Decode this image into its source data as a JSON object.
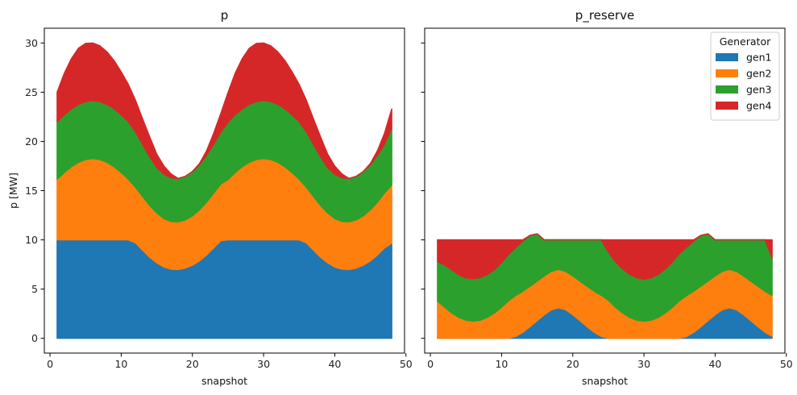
{
  "chart_data": [
    {
      "type": "area",
      "title": "p",
      "xlabel": "snapshot",
      "ylabel": "p [MW]",
      "xlim": [
        -0.8,
        49.8
      ],
      "ylim": [
        -1.5,
        31.5
      ],
      "xticks": [
        0,
        10,
        20,
        30,
        40,
        50
      ],
      "yticks": [
        0,
        5,
        10,
        15,
        20,
        25,
        30
      ],
      "x": [
        1,
        2,
        3,
        4,
        5,
        6,
        7,
        8,
        9,
        10,
        11,
        12,
        13,
        14,
        15,
        16,
        17,
        18,
        19,
        20,
        21,
        22,
        23,
        24,
        25,
        26,
        27,
        28,
        29,
        30,
        31,
        32,
        33,
        34,
        35,
        36,
        37,
        38,
        39,
        40,
        41,
        42,
        43,
        44,
        45,
        46,
        47,
        48
      ],
      "series": [
        {
          "name": "gen1",
          "color": "#1f77b4",
          "values": [
            10.0,
            10.0,
            10.0,
            10.0,
            10.0,
            10.0,
            10.0,
            10.0,
            10.0,
            10.0,
            10.0,
            9.7,
            8.96,
            8.24,
            7.67,
            7.24,
            7.03,
            7.0,
            7.13,
            7.43,
            7.87,
            8.47,
            9.2,
            9.93,
            10.0,
            10.0,
            10.0,
            10.0,
            10.0,
            10.0,
            10.0,
            10.0,
            10.0,
            10.0,
            10.0,
            9.7,
            8.96,
            8.24,
            7.67,
            7.24,
            7.03,
            7.0,
            7.13,
            7.43,
            7.87,
            8.47,
            9.2,
            9.66
          ]
        },
        {
          "name": "gen2",
          "color": "#ff7f0e",
          "values": [
            6.17,
            6.84,
            7.43,
            7.88,
            8.16,
            8.26,
            8.16,
            7.88,
            7.43,
            6.84,
            6.17,
            5.65,
            5.45,
            5.26,
            5.07,
            4.92,
            4.84,
            4.84,
            4.89,
            5.01,
            5.18,
            5.37,
            5.56,
            5.75,
            6.13,
            6.84,
            7.43,
            7.88,
            8.16,
            8.26,
            8.16,
            7.88,
            7.43,
            6.84,
            6.17,
            5.65,
            5.45,
            5.26,
            5.07,
            4.92,
            4.84,
            4.84,
            4.89,
            5.01,
            5.18,
            5.37,
            5.56,
            5.93
          ]
        },
        {
          "name": "gen3",
          "color": "#2ca02c",
          "values": [
            5.83,
            5.87,
            5.88,
            5.89,
            5.89,
            5.9,
            5.89,
            5.89,
            5.88,
            5.87,
            5.83,
            5.64,
            5.29,
            4.94,
            4.6,
            4.5,
            4.43,
            4.4,
            4.43,
            4.5,
            4.6,
            4.77,
            4.98,
            5.28,
            5.83,
            5.87,
            5.88,
            5.89,
            5.89,
            5.9,
            5.89,
            5.89,
            5.88,
            5.87,
            5.83,
            5.64,
            5.29,
            4.94,
            4.6,
            4.5,
            4.43,
            4.4,
            4.43,
            4.5,
            4.6,
            4.77,
            4.98,
            5.8
          ]
        },
        {
          "name": "gen4",
          "color": "#d62728",
          "values": [
            3.0,
            4.2,
            5.1,
            5.7,
            5.9,
            5.84,
            5.66,
            5.33,
            4.9,
            4.36,
            3.79,
            3.2,
            2.6,
            2.02,
            1.36,
            0.84,
            0.4,
            0.0,
            0.0,
            0.0,
            0.1,
            0.45,
            1.11,
            1.9,
            3.0,
            4.2,
            5.1,
            5.7,
            5.9,
            5.84,
            5.66,
            5.33,
            4.9,
            4.36,
            3.79,
            3.2,
            2.6,
            2.02,
            1.36,
            0.84,
            0.4,
            0.0,
            0.0,
            0.0,
            0.1,
            0.45,
            1.11,
            1.9
          ]
        }
      ]
    },
    {
      "type": "area",
      "title": "p_reserve",
      "xlabel": "snapshot",
      "ylabel": "",
      "xlim": [
        -0.8,
        49.8
      ],
      "ylim": [
        -1.5,
        31.5
      ],
      "xticks": [
        0,
        10,
        20,
        30,
        40,
        50
      ],
      "yticks": [
        0,
        5,
        10,
        15,
        20,
        25,
        30
      ],
      "legend": {
        "title": "Generator",
        "placement": "top-right",
        "entries": [
          "gen1",
          "gen2",
          "gen3",
          "gen4"
        ]
      },
      "x": [
        1,
        2,
        3,
        4,
        5,
        6,
        7,
        8,
        9,
        10,
        11,
        12,
        13,
        14,
        15,
        16,
        17,
        18,
        19,
        20,
        21,
        22,
        23,
        24,
        25,
        26,
        27,
        28,
        29,
        30,
        31,
        32,
        33,
        34,
        35,
        36,
        37,
        38,
        39,
        40,
        41,
        42,
        43,
        44,
        45,
        46,
        47,
        48
      ],
      "series": [
        {
          "name": "gen1",
          "color": "#1f77b4",
          "values": [
            0.0,
            0.0,
            0.0,
            0.0,
            0.0,
            0.0,
            0.0,
            0.0,
            0.0,
            0.0,
            0.0,
            0.2,
            0.62,
            1.19,
            1.8,
            2.4,
            2.9,
            3.1,
            2.9,
            2.4,
            1.8,
            1.19,
            0.62,
            0.2,
            0.0,
            0.0,
            0.0,
            0.0,
            0.0,
            0.0,
            0.0,
            0.0,
            0.0,
            0.0,
            0.0,
            0.2,
            0.62,
            1.19,
            1.8,
            2.4,
            2.9,
            3.1,
            2.9,
            2.4,
            1.8,
            1.19,
            0.62,
            0.2
          ]
        },
        {
          "name": "gen2",
          "color": "#ff7f0e",
          "values": [
            3.8,
            3.16,
            2.57,
            2.12,
            1.84,
            1.74,
            1.84,
            2.12,
            2.57,
            3.16,
            3.83,
            4.15,
            4.17,
            4.11,
            4.01,
            3.94,
            3.9,
            3.9,
            3.9,
            3.94,
            4.01,
            4.11,
            4.17,
            4.17,
            3.87,
            3.16,
            2.57,
            2.12,
            1.84,
            1.74,
            1.84,
            2.12,
            2.57,
            3.16,
            3.83,
            4.15,
            4.17,
            4.11,
            4.01,
            3.94,
            3.9,
            3.9,
            3.9,
            3.94,
            4.01,
            4.11,
            4.17,
            4.17
          ]
        },
        {
          "name": "gen3",
          "color": "#2ca02c",
          "values": [
            4.0,
            4.3,
            4.38,
            4.33,
            4.3,
            4.32,
            4.33,
            4.35,
            4.4,
            4.55,
            4.7,
            4.9,
            5.1,
            5.16,
            4.8,
            3.66,
            3.2,
            3.0,
            3.2,
            3.66,
            4.19,
            4.7,
            5.21,
            5.63,
            4.9,
            4.6,
            4.48,
            4.38,
            4.3,
            4.26,
            4.3,
            4.38,
            4.48,
            4.6,
            4.8,
            4.9,
            5.1,
            5.16,
            4.8,
            3.66,
            3.2,
            3.0,
            3.2,
            3.66,
            4.19,
            4.7,
            5.21,
            3.8
          ]
        },
        {
          "name": "gen4",
          "color": "#d62728",
          "values": [
            2.2,
            2.54,
            3.05,
            3.55,
            3.86,
            3.94,
            3.83,
            3.53,
            3.03,
            2.29,
            1.47,
            0.75,
            0.11,
            0.0,
            0.0,
            0.0,
            0.0,
            0.0,
            0.0,
            0.0,
            0.0,
            0.0,
            0.0,
            0.0,
            1.23,
            2.24,
            2.95,
            3.5,
            3.86,
            4.0,
            3.86,
            3.5,
            2.95,
            2.24,
            1.37,
            0.75,
            0.11,
            0.0,
            0.0,
            0.0,
            0.0,
            0.0,
            0.0,
            0.0,
            0.0,
            0.0,
            0.0,
            1.83
          ]
        }
      ]
    }
  ]
}
